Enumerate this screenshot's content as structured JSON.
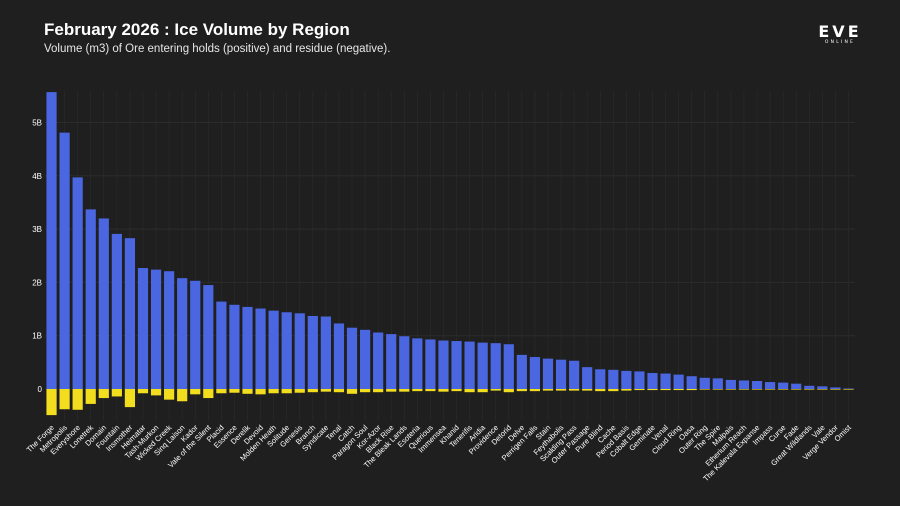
{
  "header": {
    "title": "February 2026 : Ice Volume by Region",
    "subtitle": "Volume (m3) of Ore entering holds (positive) and residue (negative)."
  },
  "logo": {
    "main": "EVE",
    "sub": "ONLINE"
  },
  "colors": {
    "background": "#1f1f1f",
    "positive": "#4a66e0",
    "negative": "#f2dd1f",
    "grid": "#2c2c2c"
  },
  "chart_data": {
    "type": "bar",
    "title": "February 2026 : Ice Volume by Region",
    "xlabel": "",
    "ylabel": "",
    "ylim": [
      -0.6,
      5.6
    ],
    "yticks": [
      0,
      1,
      2,
      3,
      4,
      5
    ],
    "ytick_labels": [
      "0",
      "1B",
      "2B",
      "3B",
      "4B",
      "5B"
    ],
    "grid": true,
    "categories": [
      "The Forge",
      "Metropolis",
      "Everyshore",
      "Lonetrek",
      "Domain",
      "Fountain",
      "Insmother",
      "Heimatar",
      "Tash-Murkon",
      "Wicked Creek",
      "Sinq Laison",
      "Kador",
      "Vale of the Silent",
      "Placid",
      "Essence",
      "Derelik",
      "Devoid",
      "Molden Heath",
      "Solitude",
      "Genesis",
      "Branch",
      "Syndicate",
      "Tenal",
      "Catch",
      "Paragon Soul",
      "Kor-Azor",
      "Black Rise",
      "The Bleak Lands",
      "Esoteria",
      "Querious",
      "Immensea",
      "Khanid",
      "Tenerifis",
      "Aridia",
      "Providence",
      "Detorid",
      "Delve",
      "Perrigen Falls",
      "Stain",
      "Feythabolis",
      "Scalding Pass",
      "Outer Passage",
      "Pure Blind",
      "Cache",
      "Period Basis",
      "Cobalt Edge",
      "Geminate",
      "Venal",
      "Cloud Ring",
      "Oasa",
      "Outer Ring",
      "The Spire",
      "Malpais",
      "Etherium Reach",
      "The Kalevala Expanse",
      "Impass",
      "Curse",
      "Fade",
      "Great Wildlands",
      "Vale",
      "Verge Vendor",
      "Omist"
    ],
    "series": [
      {
        "name": "Ore entering holds (positive)",
        "values": [
          5.57,
          4.81,
          3.97,
          3.37,
          3.2,
          2.91,
          2.83,
          2.27,
          2.24,
          2.21,
          2.08,
          2.03,
          1.95,
          1.64,
          1.58,
          1.54,
          1.51,
          1.47,
          1.44,
          1.42,
          1.37,
          1.36,
          1.23,
          1.15,
          1.11,
          1.06,
          1.03,
          0.99,
          0.95,
          0.93,
          0.91,
          0.9,
          0.89,
          0.87,
          0.86,
          0.84,
          0.64,
          0.6,
          0.57,
          0.55,
          0.53,
          0.41,
          0.37,
          0.36,
          0.34,
          0.33,
          0.3,
          0.29,
          0.27,
          0.24,
          0.21,
          0.2,
          0.17,
          0.16,
          0.15,
          0.13,
          0.12,
          0.1,
          0.06,
          0.05,
          0.03,
          0.01
        ]
      },
      {
        "name": "Residue (negative)",
        "values": [
          -0.49,
          -0.38,
          -0.39,
          -0.28,
          -0.17,
          -0.14,
          -0.34,
          -0.08,
          -0.12,
          -0.2,
          -0.23,
          -0.1,
          -0.17,
          -0.08,
          -0.07,
          -0.09,
          -0.1,
          -0.08,
          -0.08,
          -0.07,
          -0.06,
          -0.05,
          -0.06,
          -0.09,
          -0.06,
          -0.06,
          -0.05,
          -0.05,
          -0.04,
          -0.04,
          -0.05,
          -0.04,
          -0.06,
          -0.06,
          -0.03,
          -0.06,
          -0.04,
          -0.04,
          -0.03,
          -0.03,
          -0.03,
          -0.03,
          -0.04,
          -0.04,
          -0.03,
          -0.02,
          -0.02,
          -0.02,
          -0.02,
          -0.02,
          -0.01,
          -0.01,
          -0.01,
          -0.01,
          -0.01,
          -0.01,
          -0.01,
          -0.01,
          -0.01,
          -0.01,
          -0.005,
          -0.005
        ]
      }
    ]
  }
}
